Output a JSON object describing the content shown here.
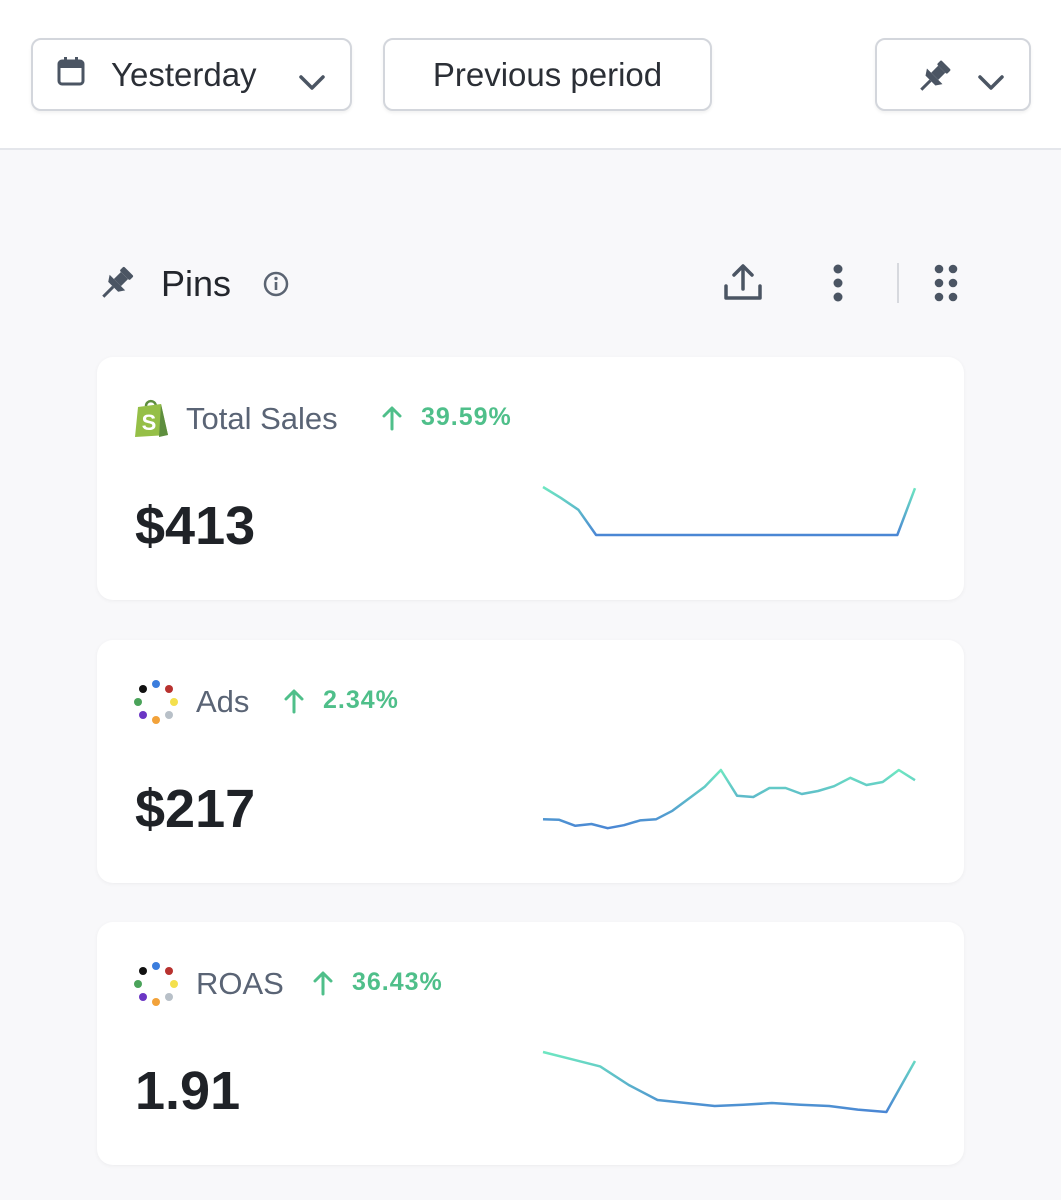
{
  "toolbar": {
    "date_range_label": "Yesterday",
    "compare_label": "Previous period"
  },
  "section": {
    "title": "Pins"
  },
  "colors": {
    "positive": "#4fbf8a",
    "spark_start": "#6ee7c1",
    "spark_end": "#4a86d4"
  },
  "cards": [
    {
      "name": "Total Sales",
      "source_icon": "shopify-bag-icon",
      "delta": "39.59%",
      "direction": "up",
      "value": "$413",
      "trend": [
        1.0,
        0.82,
        0.62,
        0.2,
        0.2,
        0.2,
        0.2,
        0.2,
        0.2,
        0.2,
        0.2,
        0.2,
        0.2,
        0.2,
        0.2,
        0.2,
        0.2,
        0.2,
        0.2,
        0.2,
        0.2,
        0.98
      ]
    },
    {
      "name": "Ads",
      "source_icon": "ads-dots-icon",
      "delta": "2.34%",
      "direction": "up",
      "value": "$217",
      "trend": [
        0.18,
        0.17,
        0.07,
        0.1,
        0.03,
        0.08,
        0.16,
        0.18,
        0.32,
        0.52,
        0.72,
        1.0,
        0.57,
        0.55,
        0.7,
        0.7,
        0.6,
        0.65,
        0.73,
        0.87,
        0.75,
        0.8,
        1.0,
        0.83
      ]
    },
    {
      "name": "ROAS",
      "source_icon": "ads-dots-icon",
      "delta": "36.43%",
      "direction": "up",
      "value": "1.91",
      "trend": [
        1.0,
        0.88,
        0.76,
        0.45,
        0.2,
        0.15,
        0.1,
        0.12,
        0.15,
        0.12,
        0.1,
        0.04,
        0.0,
        0.85
      ]
    }
  ]
}
